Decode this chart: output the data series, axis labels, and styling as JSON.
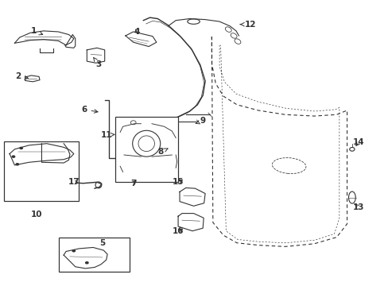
{
  "bg_color": "#ffffff",
  "line_color": "#333333",
  "fig_width": 4.89,
  "fig_height": 3.6,
  "dpi": 100,
  "label_data": [
    [
      1,
      0.085,
      0.895,
      0.115,
      0.878
    ],
    [
      2,
      0.043,
      0.735,
      0.078,
      0.726
    ],
    [
      3,
      0.252,
      0.778,
      0.238,
      0.803
    ],
    [
      4,
      0.352,
      0.893,
      0.352,
      0.877
    ],
    [
      5,
      0.262,
      0.148,
      0.262,
      0.148
    ],
    [
      6,
      0.215,
      0.618,
      0.258,
      0.608
    ],
    [
      7,
      0.342,
      0.358,
      0.355,
      0.373
    ],
    [
      8,
      0.412,
      0.468,
      0.438,
      0.485
    ],
    [
      9,
      0.522,
      0.578,
      0.502,
      0.568
    ],
    [
      10,
      0.092,
      0.248,
      0.092,
      0.248
    ],
    [
      11,
      0.272,
      0.528,
      0.295,
      0.53
    ],
    [
      12,
      0.645,
      0.918,
      0.612,
      0.918
    ],
    [
      13,
      0.925,
      0.272,
      0.91,
      0.292
    ],
    [
      14,
      0.925,
      0.502,
      0.913,
      0.482
    ],
    [
      15,
      0.458,
      0.362,
      0.476,
      0.375
    ],
    [
      16,
      0.458,
      0.188,
      0.476,
      0.202
    ],
    [
      17,
      0.188,
      0.362,
      0.208,
      0.357
    ]
  ]
}
